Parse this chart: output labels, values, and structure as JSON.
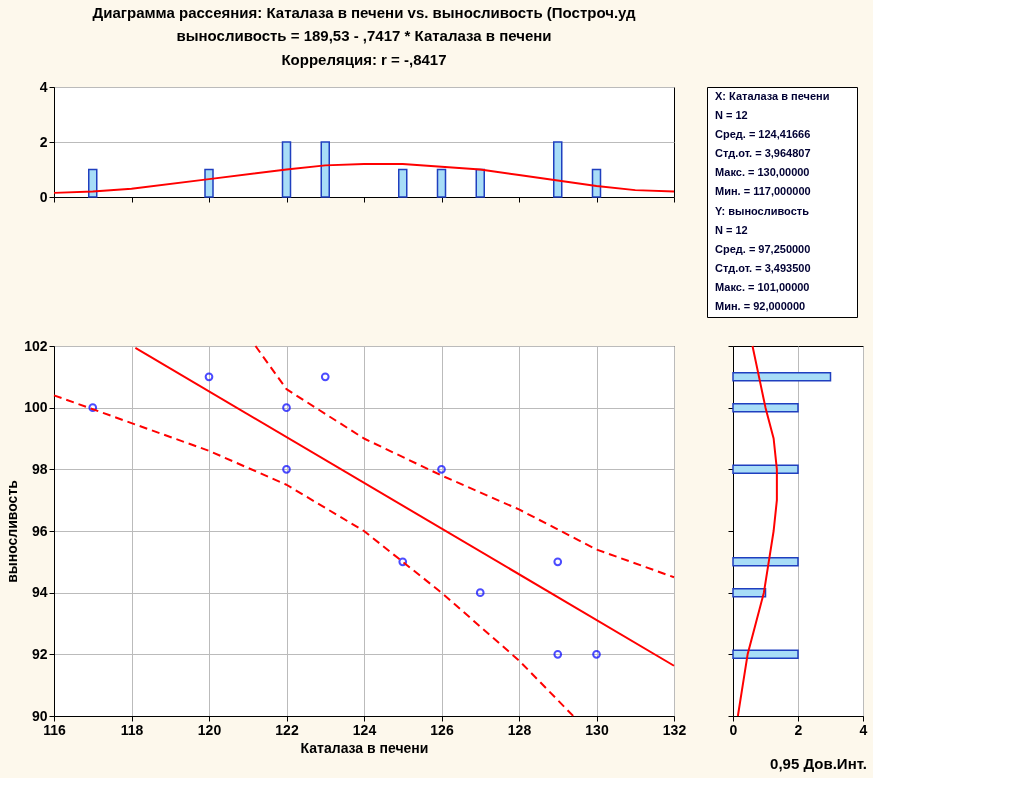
{
  "chart_data": [
    {
      "type": "bar",
      "title": "Диаграмма рассеяния: Каталаза в печени vs. выносливость (Построч.уд",
      "subtitle": "выносливость = 189,53 - ,7417  * Каталаза в печени",
      "annotations": [
        "Корреляция: r =  -,8417"
      ],
      "xlim": [
        116,
        132
      ],
      "xticks": [
        {
          "value": 116,
          "label": null
        },
        {
          "value": 118,
          "label": null
        },
        {
          "value": 120,
          "label": null
        },
        {
          "value": 122,
          "label": null
        },
        {
          "value": 124,
          "label": null
        },
        {
          "value": 126,
          "label": null
        },
        {
          "value": 128,
          "label": null
        },
        {
          "value": 130,
          "label": null
        },
        {
          "value": 132,
          "label": null
        }
      ],
      "ylim": [
        0,
        4
      ],
      "yticks": [
        0,
        2,
        4
      ],
      "tick_labels": "y",
      "grid": "y",
      "series": [
        {
          "type": "bar",
          "color": "#1f3fbf",
          "x": [
            117,
            120,
            122,
            123,
            125,
            126,
            127,
            129,
            130
          ],
          "values": [
            1,
            1,
            2,
            2,
            1,
            1,
            1,
            2,
            1
          ]
        },
        {
          "type": "line",
          "color": "#ff0000",
          "x": [
            116,
            117,
            118,
            120,
            122,
            123,
            124,
            125,
            126,
            127,
            128,
            129,
            130,
            131,
            132
          ],
          "values": [
            0.15,
            0.2,
            0.3,
            0.65,
            1.0,
            1.15,
            1.2,
            1.2,
            1.1,
            1.0,
            0.8,
            0.6,
            0.4,
            0.25,
            0.2
          ]
        }
      ]
    },
    {
      "type": "other",
      "annotations": [
        "X:  Каталаза в печени",
        "N = 12",
        "Сред. = 124,41666",
        "Стд.от. = 3,964807",
        "Макс. = 130,00000",
        "Мин. = 117,000000",
        "Y:  выносливость",
        "N = 12",
        "Сред. = 97,250000",
        "Стд.от. = 3,493500",
        "Макс. = 101,00000",
        "Мин. = 92,000000"
      ]
    },
    {
      "type": "scatter",
      "xlabel": "Каталаза в печени",
      "ylabel": "выносливость",
      "xlim": [
        116,
        132
      ],
      "xticks": [
        116,
        118,
        120,
        122,
        124,
        126,
        128,
        130,
        132
      ],
      "ylim": [
        90,
        102
      ],
      "yticks": [
        90,
        92,
        94,
        96,
        98,
        100,
        102
      ],
      "grid": true,
      "series": [
        {
          "type": "scatter",
          "marker": "circle",
          "color": "#0000ff",
          "x": [
            117,
            120,
            122,
            122,
            123,
            125,
            126,
            127,
            129,
            129,
            130
          ],
          "values": [
            100,
            101,
            100,
            98,
            101,
            95,
            98,
            94,
            95,
            92,
            92
          ]
        },
        {
          "type": "line",
          "color": "#ff0000",
          "line_style": "solid",
          "x": [
            118.1,
            132
          ],
          "values": [
            101.94,
            91.63
          ]
        },
        {
          "type": "line",
          "color": "#ff0000",
          "line_style": "dashed",
          "x": [
            121.2,
            122,
            124,
            126,
            128,
            130,
            132
          ],
          "values": [
            102,
            100.6,
            99,
            97.8,
            96.7,
            95.4,
            94.5
          ]
        },
        {
          "type": "line",
          "color": "#ff0000",
          "line_style": "dashed",
          "x": [
            116,
            118,
            120,
            122,
            124,
            126,
            128,
            129.4
          ],
          "values": [
            100.4,
            99.5,
            98.6,
            97.5,
            96,
            94,
            91.8,
            90
          ]
        }
      ]
    },
    {
      "type": "bar",
      "orientation": "horizontal",
      "annotations": [
        "0,95 Дов.Инт."
      ],
      "xlim": [
        0,
        4
      ],
      "xticks": [
        0,
        2,
        4
      ],
      "ylim": [
        90,
        102
      ],
      "yticks": [
        {
          "value": 90,
          "label": null
        },
        {
          "value": 92,
          "label": null
        },
        {
          "value": 94,
          "label": null
        },
        {
          "value": 96,
          "label": null
        },
        {
          "value": 98,
          "label": null
        },
        {
          "value": 100,
          "label": null
        },
        {
          "value": 102,
          "label": null
        }
      ],
      "tick_labels": "x",
      "grid": "x",
      "series": [
        {
          "type": "bar",
          "color": "#1f3fbf",
          "x": [
            101,
            100,
            98,
            95,
            94,
            92
          ],
          "values": [
            3,
            2,
            2,
            2,
            1,
            2
          ]
        },
        {
          "type": "line",
          "color": "#ff0000",
          "x": [
            102,
            101,
            100,
            99,
            98,
            97,
            96,
            95,
            94,
            93,
            92,
            91,
            90
          ],
          "values": [
            0.6,
            0.8,
            1.0,
            1.25,
            1.35,
            1.35,
            1.25,
            1.1,
            0.95,
            0.7,
            0.45,
            0.3,
            0.15
          ]
        }
      ]
    }
  ]
}
